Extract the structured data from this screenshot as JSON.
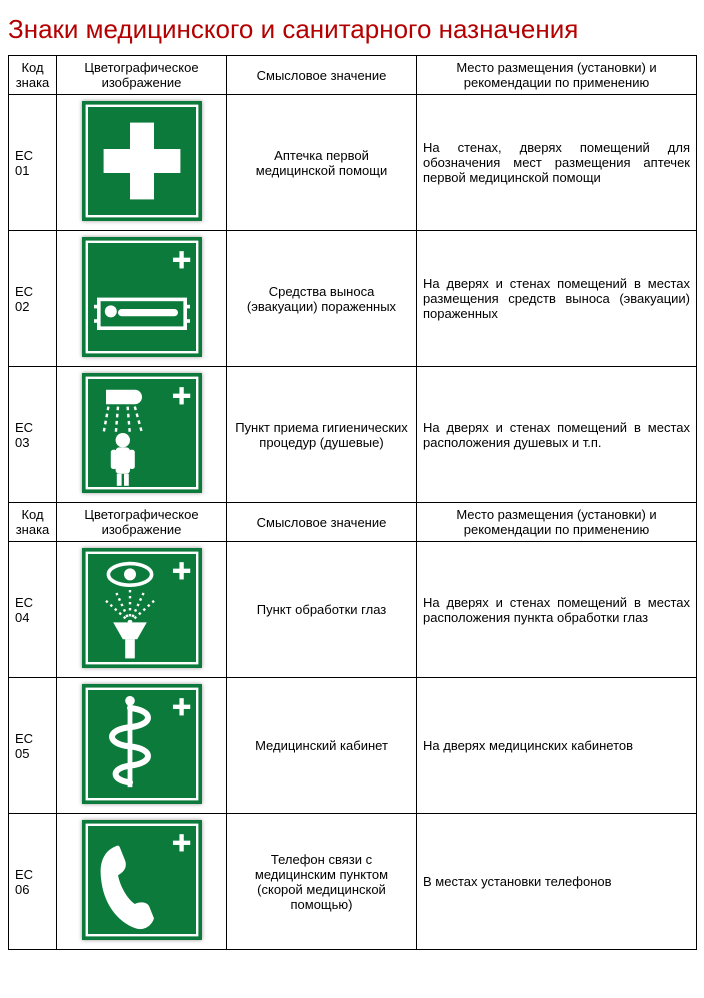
{
  "title": "Знаки медицинского и санитарного назначения",
  "colors": {
    "title": "#b40000",
    "sign_green": "#0b7a3b",
    "sign_white": "#ffffff"
  },
  "headers": {
    "code": "Код знака",
    "image": "Цветографическое изображение",
    "meaning": "Смысловое значение",
    "placement": "Место размещения (установки) и рекомендации по применению"
  },
  "rows": [
    {
      "code": "ЕС 01",
      "icon": "first-aid",
      "meaning": "Аптечка первой медицинской помощи",
      "placement": "На стенах, дверях помещений для обозначения мест размещения аптечек первой медицинской помощи"
    },
    {
      "code": "ЕС 02",
      "icon": "stretcher",
      "meaning": "Средства выноса (эвакуации) пораженных",
      "placement": "На дверях и стенах помещений в местах размещения средств выноса (эвакуации) пораженных"
    },
    {
      "code": "ЕС 03",
      "icon": "shower",
      "meaning": "Пункт приема гигиенических процедур (душевые)",
      "placement": "На дверях и стенах помещений в местах расположения душевых и т.п."
    },
    {
      "code": "ЕС 04",
      "icon": "eye-wash",
      "meaning": "Пункт обработки глаз",
      "placement": "На дверях и стенах помещений в местах расположения пункта обработки глаз"
    },
    {
      "code": "ЕС 05",
      "icon": "medical-room",
      "meaning": "Медицинский кабинет",
      "placement": "На дверях медицинских кабинетов"
    },
    {
      "code": "ЕС 06",
      "icon": "phone",
      "meaning": "Телефон связи с медицинским пунктом (скорой медицинской помощью)",
      "placement": "В местах установки телефонов"
    }
  ]
}
